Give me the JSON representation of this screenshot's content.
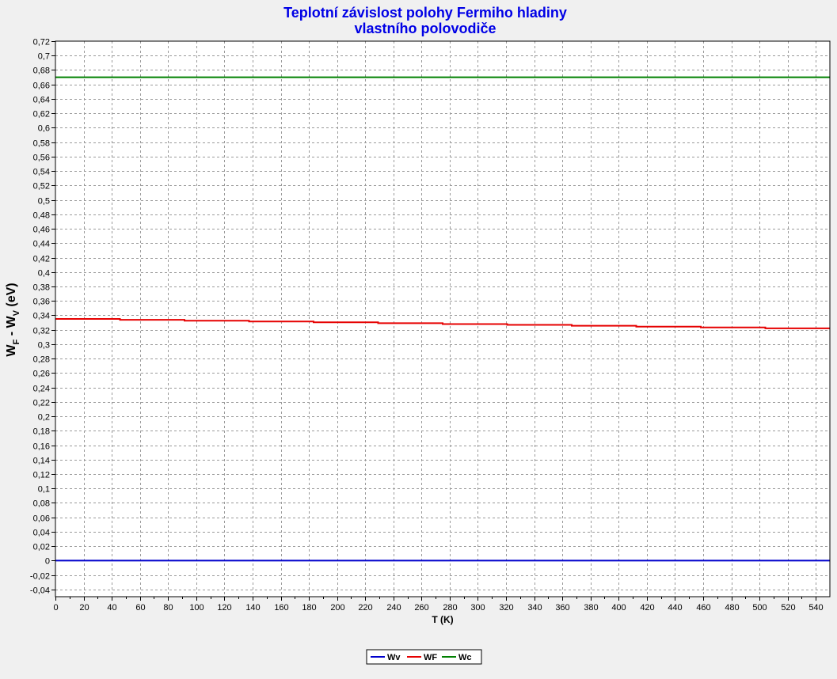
{
  "chart_data": {
    "type": "line",
    "title_lines": [
      "Teplotní závislost polohy Fermiho hladiny",
      "vlastního polovodiče"
    ],
    "xlabel": "T (K)",
    "ylabel": {
      "w1": "W",
      "sub1": "F",
      "sep": " - W",
      "sub2": "V",
      "unit": " (eV)"
    },
    "xlim": [
      0,
      550
    ],
    "ylim": [
      -0.05,
      0.72
    ],
    "x_ticks": [
      0,
      20,
      40,
      60,
      80,
      100,
      120,
      140,
      160,
      180,
      200,
      220,
      240,
      260,
      280,
      300,
      320,
      340,
      360,
      380,
      400,
      420,
      440,
      460,
      480,
      500,
      520,
      540
    ],
    "y_ticks": [
      -0.04,
      -0.02,
      0,
      0.02,
      0.04,
      0.06,
      0.08,
      0.1,
      0.12,
      0.14,
      0.16,
      0.18,
      0.2,
      0.22,
      0.24,
      0.26,
      0.28,
      0.3,
      0.32,
      0.34,
      0.36,
      0.38,
      0.4,
      0.42,
      0.44,
      0.46,
      0.48,
      0.5,
      0.52,
      0.54,
      0.56,
      0.58,
      0.6,
      0.62,
      0.64,
      0.66,
      0.68,
      0.7,
      0.72
    ],
    "decimal_separator": ",",
    "grid": true,
    "legend_position": "bottom-center",
    "series": [
      {
        "name": "Wv",
        "color": "#0000cc",
        "x": [
          0,
          550
        ],
        "y": [
          0,
          0
        ]
      },
      {
        "name": "WF",
        "color": "#e60000",
        "x": [
          0,
          550
        ],
        "y": [
          0.335,
          0.322
        ]
      },
      {
        "name": "Wc",
        "color": "#008000",
        "x": [
          0,
          550
        ],
        "y": [
          0.67,
          0.67
        ]
      }
    ]
  }
}
